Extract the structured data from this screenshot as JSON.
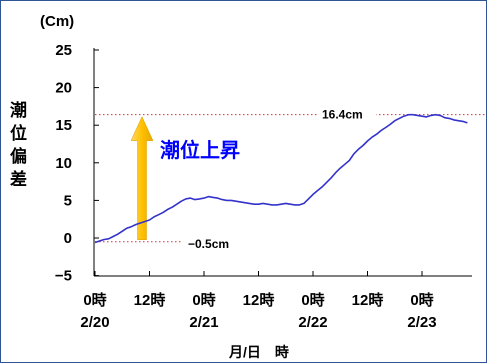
{
  "chart_data": {
    "type": "line",
    "unit_label": "(Cm)",
    "ylabel": "潮位偏差",
    "xlabel": "月/日　時",
    "ylim": [
      -5,
      25
    ],
    "y_ticks": [
      25,
      20,
      15,
      10,
      5,
      0,
      -5
    ],
    "xlim": [
      0,
      84
    ],
    "x_ticks": [
      {
        "hours": 0,
        "time": "0時",
        "date": "2/20"
      },
      {
        "hours": 12,
        "time": "12時",
        "date": ""
      },
      {
        "hours": 24,
        "time": "0時",
        "date": "2/21"
      },
      {
        "hours": 36,
        "time": "12時",
        "date": ""
      },
      {
        "hours": 48,
        "time": "0時",
        "date": "2/22"
      },
      {
        "hours": 60,
        "time": "12時",
        "date": ""
      },
      {
        "hours": 72,
        "time": "0時",
        "date": "2/23"
      }
    ],
    "grid": false,
    "series": [
      {
        "color": "#3333cc",
        "x": [
          0,
          1,
          2,
          3,
          4,
          5,
          6,
          7,
          8,
          9,
          10,
          11,
          12,
          13,
          14,
          15,
          16,
          17,
          18,
          19,
          20,
          21,
          22,
          23,
          24,
          25,
          26,
          27,
          28,
          29,
          30,
          31,
          32,
          33,
          34,
          35,
          36,
          37,
          38,
          39,
          40,
          41,
          42,
          43,
          44,
          45,
          46,
          47,
          48,
          49,
          50,
          51,
          52,
          53,
          54,
          55,
          56,
          57,
          58,
          59,
          60,
          61,
          62,
          63,
          64,
          65,
          66,
          67,
          68,
          69,
          70,
          71,
          72,
          73,
          74,
          75,
          76,
          77,
          78,
          79,
          80,
          81,
          82
        ],
        "values": [
          -0.6,
          -0.4,
          -0.2,
          -0.1,
          0.2,
          0.5,
          0.9,
          1.3,
          1.5,
          1.8,
          2.0,
          2.2,
          2.4,
          2.8,
          3.1,
          3.4,
          3.8,
          4.1,
          4.5,
          4.9,
          5.2,
          5.3,
          5.1,
          5.2,
          5.3,
          5.5,
          5.4,
          5.3,
          5.1,
          5.0,
          5.0,
          4.9,
          4.8,
          4.7,
          4.6,
          4.5,
          4.5,
          4.6,
          4.5,
          4.4,
          4.4,
          4.5,
          4.6,
          4.5,
          4.4,
          4.4,
          4.6,
          5.2,
          5.8,
          6.3,
          6.8,
          7.4,
          8.0,
          8.7,
          9.3,
          9.8,
          10.3,
          11.2,
          11.8,
          12.3,
          12.9,
          13.4,
          13.8,
          14.3,
          14.7,
          15.1,
          15.6,
          15.9,
          16.2,
          16.4,
          16.4,
          16.3,
          16.2,
          16.1,
          16.3,
          16.4,
          16.3,
          16.0,
          15.9,
          15.7,
          15.6,
          15.5,
          15.3
        ]
      }
    ],
    "reference_lines": [
      {
        "value": 16.4,
        "label": "16.4cm",
        "color": "#cc3333"
      },
      {
        "value": -0.5,
        "label": "−0.5cm",
        "color": "#cc3333"
      }
    ],
    "callout": {
      "text": "潮位上昇",
      "color": "#0000ff"
    },
    "arrow": {
      "from": -0.5,
      "to": 16.4,
      "color": "#ffc000"
    }
  }
}
